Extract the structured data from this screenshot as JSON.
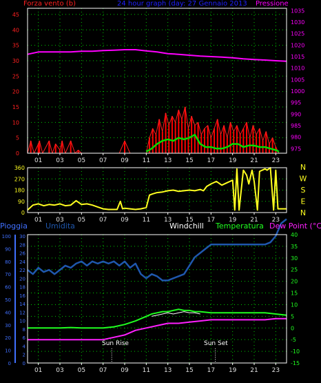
{
  "colors": {
    "wind": "#ff2020",
    "gust": "#ff0000",
    "avg_wind": "#00e000",
    "pressure": "#ff00ff",
    "direction": "#ffff20",
    "humidity": "#1f57ad",
    "windchill": "#ffffff",
    "temperature": "#20ff20",
    "dewpoint": "#ff20ff",
    "grid": "#00d000",
    "axis_blue": "#4070ff",
    "frame": "#ffffff",
    "title": "#2020ff"
  },
  "panel1": {
    "left_title": "Forza vento",
    "left_unit": "(b)",
    "center_title": "24 hour graph (day:  27 Gennaio 2013",
    "right_title": "Pressione"
  },
  "panel3": {
    "rain": "Pioggia",
    "humidity": "Umidita",
    "windchill": "Windchill",
    "temperature": "Temperatura",
    "dewpoint": "Dew Point (°C)",
    "sunrise": "Sun Rise",
    "sunset": "Sun Set",
    "sunrise_hour": 7.8,
    "sunset_hour": 17.4
  },
  "x_ticks": [
    "01",
    "03",
    "05",
    "07",
    "09",
    "11",
    "13",
    "15",
    "17",
    "19",
    "21",
    "23"
  ],
  "x_tick_hours": [
    1,
    3,
    5,
    7,
    9,
    11,
    13,
    15,
    17,
    19,
    21,
    23
  ],
  "chart_data": [
    {
      "type": "line",
      "name": "wind-pressure",
      "x_range": [
        0,
        24
      ],
      "y_left_ticks": [
        0,
        5,
        10,
        15,
        20,
        25,
        30,
        35,
        40,
        45
      ],
      "y_left_range": [
        0,
        47
      ],
      "y_right_ticks": [
        975,
        980,
        985,
        990,
        995,
        1000,
        1005,
        1010,
        1015,
        1020,
        1025,
        1030,
        1035
      ],
      "y_right_range": [
        973,
        1036
      ],
      "pressure": {
        "x": [
          0,
          1,
          2,
          3,
          4,
          5,
          6,
          7,
          8,
          9,
          10,
          11,
          12,
          13,
          14,
          15,
          16,
          17,
          18,
          19,
          20,
          21,
          22,
          23,
          24
        ],
        "y": [
          1016,
          1017,
          1017,
          1017,
          1017,
          1017.3,
          1017.3,
          1017.6,
          1017.8,
          1018,
          1018,
          1017.5,
          1017,
          1016.3,
          1016,
          1015.6,
          1015.2,
          1015,
          1014.8,
          1014.5,
          1014,
          1013.7,
          1013.5,
          1013.2,
          1013
        ]
      },
      "wind_gust": {
        "x": [
          0,
          0.3,
          0.6,
          1.0,
          1.1,
          1.4,
          2.0,
          2.3,
          2.6,
          3.0,
          3.2,
          3.5,
          4.0,
          4.4,
          4.7,
          5.0,
          5.3,
          5.7,
          6.0,
          6.6,
          7.0,
          7.5,
          8.0,
          8.5,
          9.0,
          9.5,
          10.0,
          10.5,
          11.0,
          11.3,
          11.6,
          11.9,
          12.2,
          12.5,
          12.8,
          13.1,
          13.4,
          13.7,
          14.0,
          14.3,
          14.6,
          14.9,
          15.2,
          15.5,
          15.8,
          16.1,
          16.4,
          16.7,
          17.0,
          17.3,
          17.6,
          17.9,
          18.2,
          18.5,
          18.8,
          19.1,
          19.4,
          19.7,
          20.0,
          20.3,
          20.6,
          20.9,
          21.2,
          21.5,
          21.8,
          22.1,
          22.4,
          22.7,
          23.0,
          23.3
        ],
        "y": [
          0,
          4,
          0,
          3,
          4,
          0,
          4,
          0,
          3,
          1,
          4,
          0,
          4,
          0,
          1,
          0,
          0,
          0,
          0,
          0,
          0,
          0,
          0,
          0,
          4,
          0,
          0,
          0,
          0,
          5,
          8,
          6,
          11,
          7,
          13,
          9,
          12,
          10,
          14,
          11,
          15,
          8,
          12,
          9,
          10,
          6,
          8,
          9,
          5,
          8,
          11,
          6,
          9,
          5,
          10,
          7,
          9,
          6,
          8,
          10,
          5,
          9,
          6,
          8,
          4,
          7,
          3,
          5,
          2,
          0
        ]
      },
      "wind_avg": {
        "x": [
          11,
          11.5,
          12,
          12.5,
          13,
          13.5,
          14,
          14.5,
          15,
          15.5,
          16,
          16.5,
          17,
          17.5,
          18,
          18.5,
          19,
          19.5,
          20,
          20.5,
          21,
          21.5,
          22,
          22.5,
          23,
          23.3
        ],
        "y": [
          0.5,
          1.5,
          3,
          4,
          4.5,
          4,
          5,
          4.5,
          5,
          6,
          3,
          2,
          2,
          1.5,
          1.5,
          2,
          3,
          3,
          2,
          2.5,
          2.5,
          2,
          2,
          1.5,
          1,
          0.5
        ]
      }
    },
    {
      "type": "line",
      "name": "wind-direction",
      "x_range": [
        0,
        24
      ],
      "y_ticks": [
        0,
        90,
        180,
        270,
        360
      ],
      "y_range": [
        0,
        360
      ],
      "compass_labels": [
        "N",
        "W",
        "S",
        "E",
        "N"
      ],
      "direction": {
        "x": [
          0,
          0.5,
          1.0,
          1.5,
          2.0,
          2.5,
          3.0,
          3.5,
          4.0,
          4.5,
          5.0,
          5.5,
          6.0,
          6.5,
          7.0,
          7.5,
          8.0,
          8.3,
          8.6,
          8.8,
          9.0,
          9.5,
          10.0,
          10.5,
          11.0,
          11.3,
          11.6,
          12.0,
          12.5,
          13.0,
          13.5,
          14.0,
          14.5,
          15.0,
          15.5,
          16.0,
          16.3,
          16.6,
          17.0,
          17.5,
          18.0,
          18.5,
          19.0,
          19.2,
          19.4,
          19.6,
          20.0,
          20.3,
          20.5,
          20.8,
          21.0,
          21.3,
          21.5,
          22.0,
          22.2,
          22.5,
          22.8,
          23.0,
          23.2,
          23.5,
          24.0
        ],
        "y": [
          20,
          60,
          70,
          55,
          65,
          60,
          70,
          55,
          60,
          95,
          65,
          70,
          60,
          45,
          30,
          25,
          25,
          25,
          90,
          30,
          35,
          30,
          25,
          30,
          40,
          140,
          150,
          160,
          165,
          175,
          180,
          170,
          175,
          180,
          175,
          185,
          175,
          210,
          230,
          250,
          220,
          240,
          260,
          20,
          350,
          20,
          340,
          300,
          230,
          340,
          250,
          20,
          330,
          350,
          340,
          360,
          20,
          340,
          30,
          30,
          30
        ]
      }
    },
    {
      "type": "line",
      "name": "humidity-temperature",
      "x_range": [
        0,
        24
      ],
      "y_rain_ticks": [
        0,
        10,
        20,
        30,
        40,
        50,
        60,
        70,
        80,
        90,
        100
      ],
      "y_humidity_ticks": [
        0,
        2,
        4,
        6,
        8,
        10,
        12,
        14,
        16,
        18,
        20,
        22,
        24,
        26,
        28,
        30
      ],
      "y_temp_ticks": [
        -15,
        -10,
        -5,
        0,
        5,
        10,
        15,
        20,
        25,
        30,
        35,
        40
      ],
      "y_temp_range": [
        -15,
        40
      ],
      "humidity_series": {
        "x": [
          0,
          0.5,
          1,
          1.5,
          2,
          2.5,
          3,
          3.5,
          4,
          4.5,
          5,
          5.5,
          6,
          6.5,
          7,
          7.5,
          8,
          8.5,
          9,
          9.5,
          10,
          10.5,
          11,
          11.5,
          12,
          12.5,
          13,
          13.5,
          14,
          14.5,
          15,
          15.5,
          16,
          16.5,
          17,
          17.5,
          18,
          18.5,
          19,
          19.5,
          20,
          20.5,
          21,
          21.5,
          22,
          22.5,
          23,
          23.5,
          24
        ],
        "y": [
          22,
          21,
          22.5,
          21.5,
          22,
          21,
          22,
          23,
          22.5,
          23.5,
          24,
          23,
          24,
          23.5,
          24,
          23.5,
          24,
          23,
          24,
          22.5,
          23.5,
          21,
          20,
          21,
          20.5,
          19.5,
          19.5,
          20,
          20.5,
          21,
          23,
          25,
          26,
          27,
          28,
          28,
          28,
          28,
          28,
          28,
          28,
          28,
          28,
          28,
          28,
          28.5,
          30,
          33,
          34
        ]
      },
      "temperature_series": {
        "x": [
          0,
          1,
          2,
          3,
          4,
          5,
          6,
          7,
          8,
          9,
          10,
          11,
          11.5,
          12,
          12.5,
          13,
          13.5,
          14,
          14.5,
          15,
          15.5,
          16,
          17,
          18,
          19,
          20,
          21,
          22,
          23,
          24
        ],
        "y": [
          0,
          0,
          0,
          0,
          0.2,
          0,
          0,
          0,
          0.5,
          1.5,
          3,
          5,
          6,
          6.5,
          7,
          7,
          7.5,
          8,
          7.5,
          7.5,
          7,
          7,
          6.5,
          6.5,
          6.5,
          6.5,
          6.5,
          6.5,
          6,
          5.5
        ]
      },
      "windchill_series": {
        "x": [
          11.5,
          12,
          12.5,
          13,
          13.5,
          14,
          14.5,
          15,
          15.5,
          16
        ],
        "y": [
          5,
          5.5,
          6,
          6.5,
          6,
          6.5,
          7,
          6.5,
          6.5,
          6
        ]
      },
      "dewpoint_series": {
        "x": [
          0,
          1,
          2,
          3,
          4,
          5,
          6,
          7,
          8,
          9,
          10,
          11,
          12,
          13,
          14,
          15,
          16,
          17,
          18,
          19,
          20,
          21,
          22,
          23,
          24
        ],
        "y": [
          -5,
          -5,
          -5,
          -5,
          -5,
          -5,
          -5,
          -5,
          -4,
          -3,
          -1,
          0,
          1,
          2,
          2,
          2.5,
          3,
          3.5,
          3.5,
          3.5,
          3.5,
          3.5,
          3.5,
          4,
          4
        ]
      }
    }
  ]
}
